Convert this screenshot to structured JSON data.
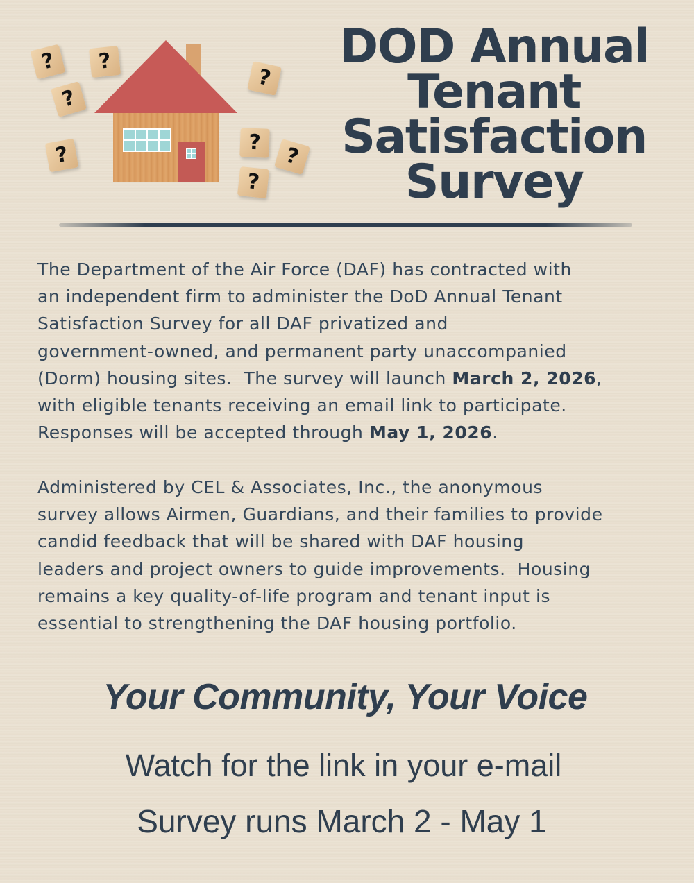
{
  "title": {
    "lines": [
      "DOD Annual",
      "Tenant",
      "Satisfaction",
      "Survey"
    ]
  },
  "illustration": {
    "block_glyph": "?"
  },
  "paragraph1": {
    "l1": "The Department of the Air Force (DAF) has contracted with",
    "l2": "an independent firm to administer the DoD Annual Tenant",
    "l3": "Satisfaction Survey for all DAF privatized and",
    "l4": "government-owned, and permanent party unaccompanied",
    "l5": "(Dorm) housing sites.  The survey will launch ",
    "l5_bold": "March 2, 2026",
    "l5_end": ",",
    "l6": "with eligible tenants receiving an email link to participate.",
    "l7": "Responses will be accepted through ",
    "l7_bold": "May 1, 2026",
    "l7_end": "."
  },
  "paragraph2": {
    "lines": [
      "Administered by CEL & Associates, Inc., the anonymous",
      "survey allows Airmen, Guardians, and their families to provide",
      "candid feedback that will be shared with DAF housing",
      "leaders and project owners to guide improvements.  Housing",
      "remains a key quality-of-life program and tenant input is",
      "essential to strengthening the DAF housing portfolio."
    ]
  },
  "slogan": "Your Community, Your Voice",
  "cta": {
    "line1": "Watch for the link in your e-mail",
    "line2": "Survey runs March 2 - May 1"
  },
  "colors": {
    "text": "#2f3e4e",
    "background": "#e9dfd0",
    "roof": "#c75a57"
  }
}
